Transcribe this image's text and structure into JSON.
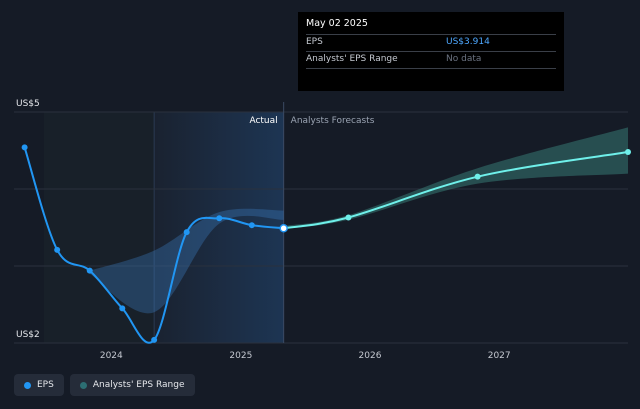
{
  "tooltip": {
    "date": "May 02 2025",
    "rows": [
      {
        "label": "EPS",
        "value": "US$3.914"
      },
      {
        "label": "Analysts' EPS Range",
        "value": "No data"
      }
    ]
  },
  "legend": {
    "items": [
      {
        "label": "EPS",
        "color": "#2196f3"
      },
      {
        "label": "Analysts' EPS Range",
        "color": "#2c6e73"
      }
    ]
  },
  "colors": {
    "background": "#151b26",
    "actual_line": "#2196f3",
    "forecast_line": "#6ff0ea",
    "forecast_band": "#3f8f86",
    "actual_band": "#3b7fc4"
  },
  "chart_data": {
    "type": "line",
    "divider_labels": {
      "left": "Actual",
      "right": "Analysts Forecasts"
    },
    "ylim": [
      2,
      5
    ],
    "y_tick_labels": [
      {
        "value": 5,
        "label": "US$5"
      },
      {
        "value": 2,
        "label": "US$2"
      }
    ],
    "x_tick_labels": [
      {
        "value": "2024-01-01",
        "label": "2024"
      },
      {
        "value": "2025-01-01",
        "label": "2025"
      },
      {
        "value": "2026-01-01",
        "label": "2026"
      },
      {
        "value": "2027-01-01",
        "label": "2027"
      }
    ],
    "xlim": [
      "2023-04-01",
      "2027-12-31"
    ],
    "divider_date": "2025-05-02",
    "grid": true,
    "series": [
      {
        "name": "EPS",
        "role": "actual",
        "points": [
          {
            "date": "2023-05-01",
            "value": 4.54
          },
          {
            "date": "2023-08-01",
            "value": 3.21
          },
          {
            "date": "2023-11-01",
            "value": 2.94
          },
          {
            "date": "2024-02-01",
            "value": 2.45
          },
          {
            "date": "2024-05-01",
            "value": 2.04
          },
          {
            "date": "2024-08-01",
            "value": 3.44
          },
          {
            "date": "2024-11-01",
            "value": 3.62
          },
          {
            "date": "2025-02-01",
            "value": 3.53
          },
          {
            "date": "2025-05-02",
            "value": 3.914
          }
        ]
      },
      {
        "name": "Forecast EPS",
        "role": "forecast",
        "points": [
          {
            "date": "2025-05-02",
            "value": 3.49
          },
          {
            "date": "2025-11-01",
            "value": 3.63
          },
          {
            "date": "2026-11-01",
            "value": 4.16
          },
          {
            "date": "2027-12-31",
            "value": 4.48
          }
        ]
      }
    ],
    "forecast_range": [
      {
        "date": "2025-05-02",
        "low": 3.48,
        "high": 3.52
      },
      {
        "date": "2025-11-01",
        "low": 3.6,
        "high": 3.66
      },
      {
        "date": "2026-11-01",
        "low": 4.07,
        "high": 4.27
      },
      {
        "date": "2027-12-31",
        "low": 4.2,
        "high": 4.8
      }
    ],
    "analyst_range_history": [
      {
        "date": "2023-11-01",
        "low": 2.9,
        "high": 2.94
      },
      {
        "date": "2024-05-01",
        "low": 2.4,
        "high": 3.2
      },
      {
        "date": "2024-11-01",
        "low": 3.55,
        "high": 3.7
      },
      {
        "date": "2025-05-02",
        "low": 3.6,
        "high": 3.72
      }
    ]
  }
}
